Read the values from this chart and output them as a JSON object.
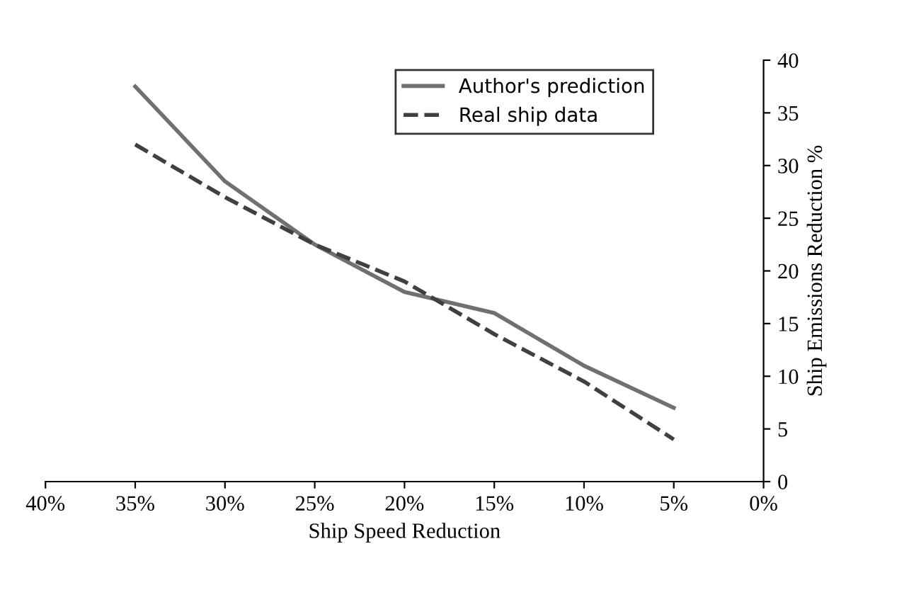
{
  "chart_data": {
    "type": "line",
    "xlabel": "Ship Speed Reduction",
    "ylabel": "Ship Emissions Reduction %",
    "x": [
      35,
      30,
      25,
      20,
      15,
      10,
      5
    ],
    "series": [
      {
        "name": "Author's prediction",
        "color": "#707070",
        "line_style": "solid",
        "values": [
          37.5,
          28.5,
          22.5,
          18,
          16,
          11,
          7
        ]
      },
      {
        "name": "Real ship data",
        "color": "#404040",
        "line_style": "dashed",
        "values": [
          32,
          27,
          22.5,
          19,
          14,
          9.5,
          4
        ]
      }
    ],
    "xlim": [
      40,
      0
    ],
    "ylim": [
      0,
      40
    ],
    "xticks": [
      {
        "value": 40,
        "label": "40%"
      },
      {
        "value": 35,
        "label": "35%"
      },
      {
        "value": 30,
        "label": "30%"
      },
      {
        "value": 25,
        "label": "25%"
      },
      {
        "value": 20,
        "label": "20%"
      },
      {
        "value": 15,
        "label": "15%"
      },
      {
        "value": 10,
        "label": "10%"
      },
      {
        "value": 5,
        "label": "5%"
      },
      {
        "value": 0,
        "label": "0%"
      }
    ],
    "yticks": [
      0,
      5,
      10,
      15,
      20,
      25,
      30,
      35,
      40
    ],
    "legend": "top right",
    "grid": false,
    "marker": "none"
  }
}
